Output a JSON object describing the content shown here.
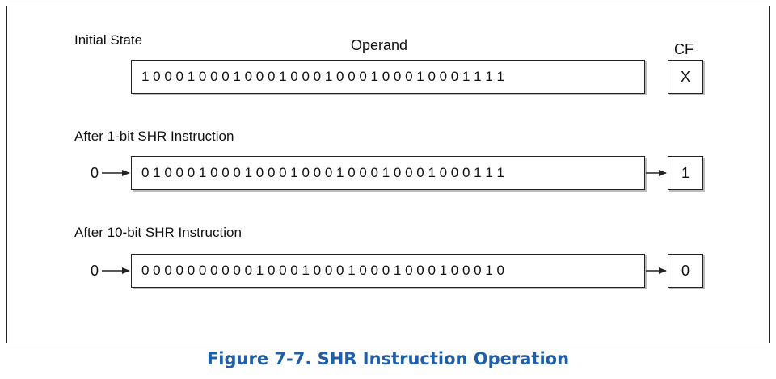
{
  "labels": {
    "initial_state": "Initial State",
    "operand": "Operand",
    "cf": "CF",
    "after_1bit": "After 1-bit SHR Instruction",
    "after_10bit": "After 10-bit SHR Instruction"
  },
  "rows": {
    "initial": {
      "bits": "1 0 0 0 1 0 0 0 1 0 0 0 1 0 0 0 1 0 0 0 1 0 0 0 1 0 0 0 1 1 1 1",
      "cf": "X"
    },
    "shr1": {
      "input": "0",
      "bits": "0 1 0 0 0 1 0 0 0 1 0 0 0 1 0 0 0 1 0 0 0 1 0 0 0 1 0 0 0 1 1 1",
      "cf": "1"
    },
    "shr10": {
      "input": "0",
      "bits": "0 0 0 0 0 0 0 0 0 0 1 0 0 0 1 0 0 0 1 0 0 0 1 0 0 0 1 0 0 0 1 0",
      "cf": "0"
    }
  },
  "caption": "Figure 7-7.  SHR Instruction Operation",
  "colors": {
    "caption": "#1f5fa8",
    "lines": "#222222"
  }
}
